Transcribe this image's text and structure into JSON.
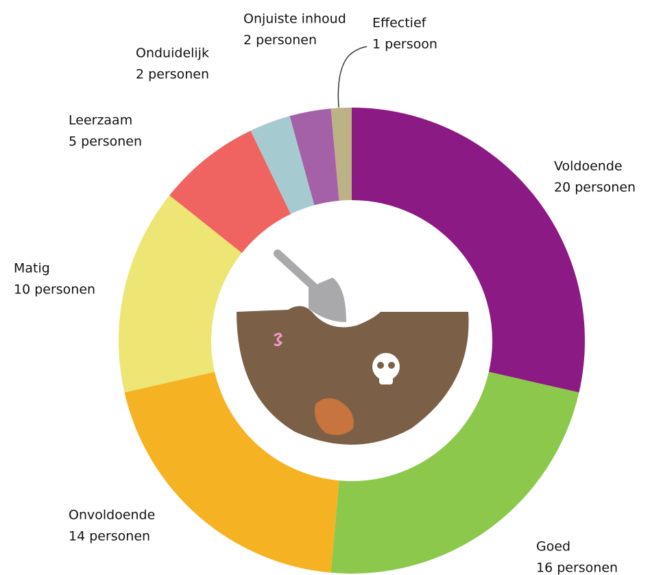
{
  "chart_data": {
    "type": "donut",
    "categories": [
      "Voldoende",
      "Goed",
      "Onvoldoende",
      "Matig",
      "Leerzaam",
      "Onduidelijk",
      "Onjuiste inhoud",
      "Effectief"
    ],
    "values": [
      20,
      16,
      14,
      10,
      5,
      2,
      2,
      1
    ],
    "value_labels": [
      "20 personen",
      "16 personen",
      "14 personen",
      "10 personen",
      "5 personen",
      "2 personen",
      "2 personen",
      "1 persoon"
    ],
    "colors": [
      "#8b1a84",
      "#8cc84b",
      "#f5b324",
      "#ede574",
      "#ef6461",
      "#a5cbd0",
      "#a461a8",
      "#bdb285"
    ]
  }
}
